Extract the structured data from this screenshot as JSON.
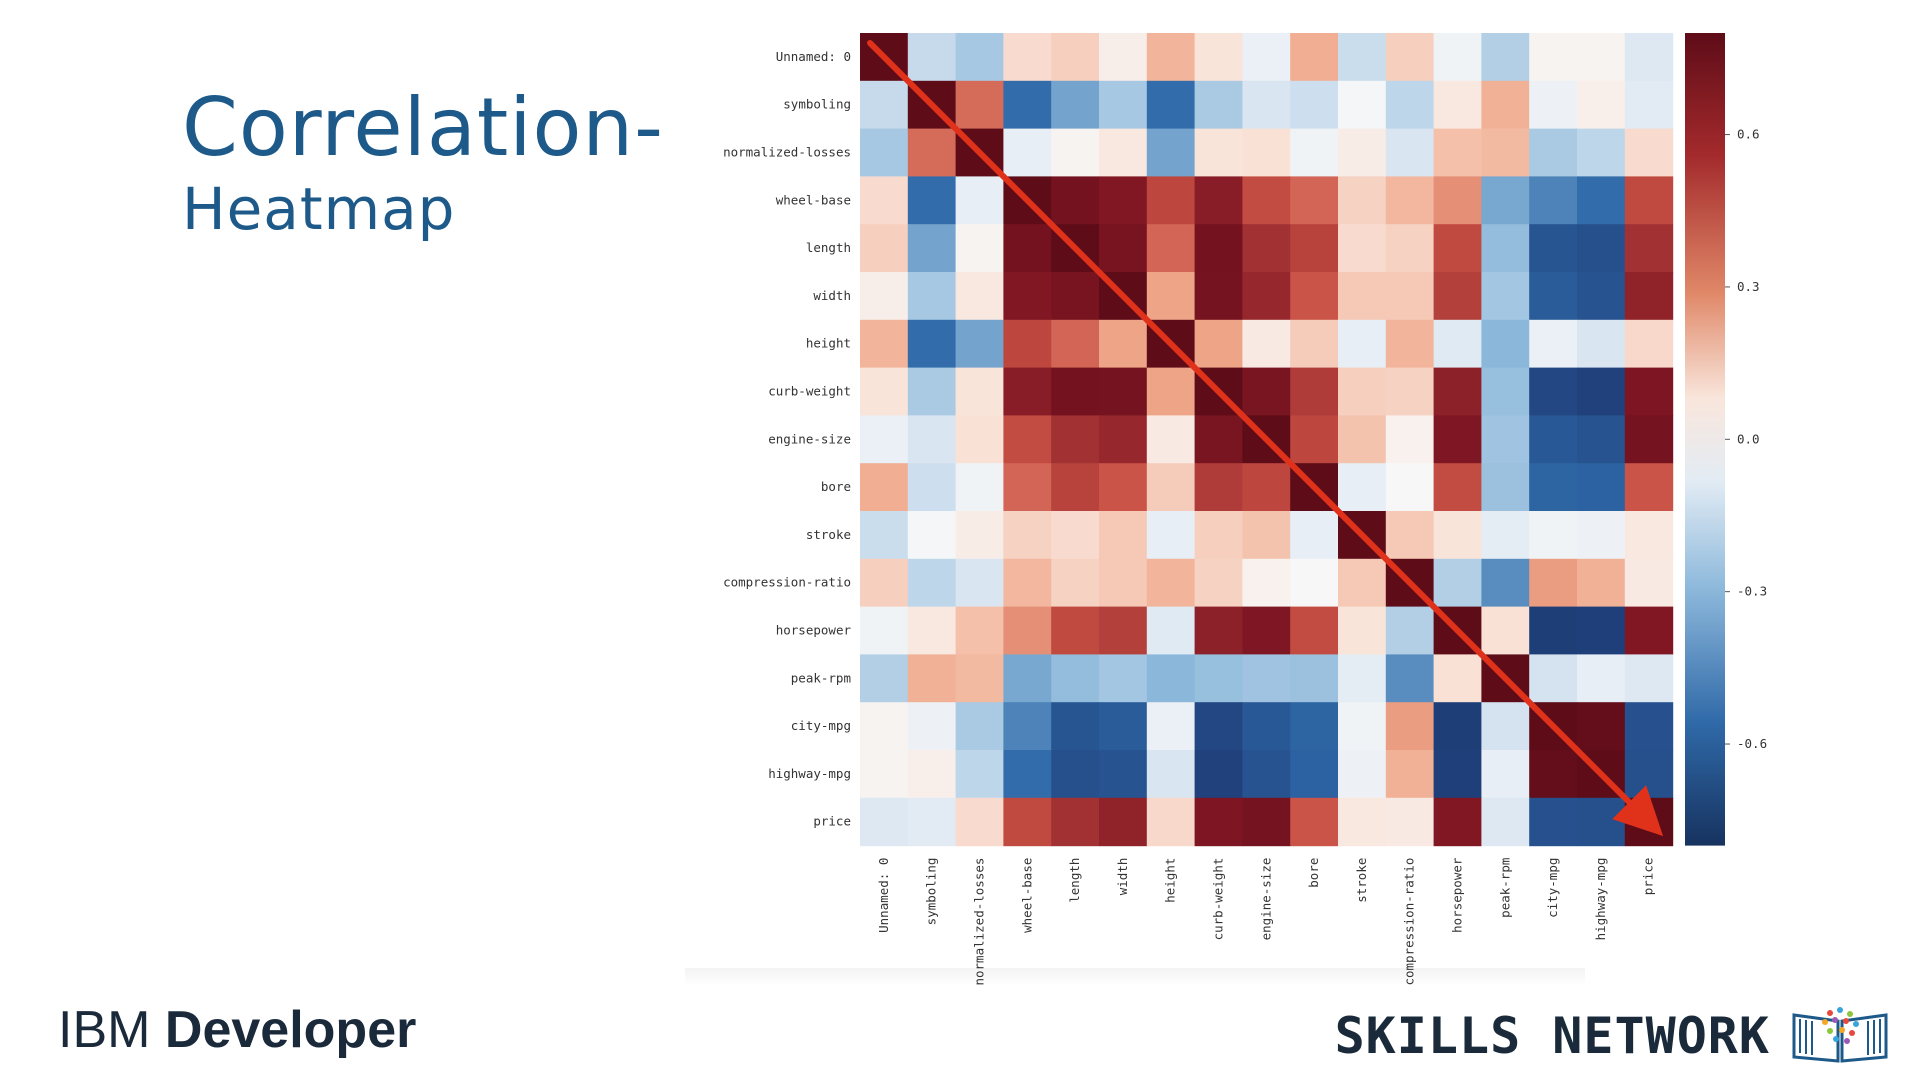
{
  "slide": {
    "title_line1": "Correlation-",
    "title_line2": "Heatmap"
  },
  "footer": {
    "left_light": "IBM ",
    "left_bold": "Developer",
    "right_text": "SKILLS NETWORK",
    "right_logo_icon": "skills-network-book-icon"
  },
  "chart_data": {
    "type": "heatmap",
    "title": "",
    "variables": [
      "Unnamed: 0",
      "symboling",
      "normalized-losses",
      "wheel-base",
      "length",
      "width",
      "height",
      "curb-weight",
      "engine-size",
      "bore",
      "stroke",
      "compression-ratio",
      "horsepower",
      "peak-rpm",
      "city-mpg",
      "highway-mpg",
      "price"
    ],
    "values": [
      [
        1.0,
        -0.16,
        -0.24,
        0.13,
        0.17,
        0.05,
        0.26,
        0.1,
        -0.05,
        0.28,
        -0.15,
        0.17,
        -0.03,
        -0.21,
        0.02,
        0.02,
        -0.1
      ],
      [
        -0.16,
        1.0,
        0.47,
        -0.54,
        -0.37,
        -0.24,
        -0.54,
        -0.23,
        -0.11,
        -0.14,
        -0.01,
        -0.18,
        0.08,
        0.27,
        -0.04,
        0.04,
        -0.08
      ],
      [
        -0.24,
        0.47,
        1.0,
        -0.06,
        0.02,
        0.08,
        -0.37,
        0.1,
        0.11,
        -0.03,
        0.06,
        -0.11,
        0.22,
        0.24,
        -0.23,
        -0.18,
        0.13
      ],
      [
        0.13,
        -0.54,
        -0.06,
        1.0,
        0.88,
        0.81,
        0.59,
        0.78,
        0.57,
        0.49,
        0.16,
        0.25,
        0.37,
        -0.36,
        -0.47,
        -0.54,
        0.58
      ],
      [
        0.17,
        -0.37,
        0.02,
        0.88,
        1.0,
        0.86,
        0.49,
        0.88,
        0.69,
        0.61,
        0.13,
        0.16,
        0.58,
        -0.29,
        -0.67,
        -0.7,
        0.69
      ],
      [
        0.05,
        -0.24,
        0.08,
        0.81,
        0.86,
        1.0,
        0.31,
        0.87,
        0.73,
        0.54,
        0.19,
        0.19,
        0.62,
        -0.25,
        -0.63,
        -0.68,
        0.75
      ],
      [
        0.26,
        -0.54,
        -0.37,
        0.59,
        0.49,
        0.31,
        1.0,
        0.31,
        0.07,
        0.18,
        -0.06,
        0.26,
        -0.09,
        -0.31,
        -0.05,
        -0.11,
        0.14
      ],
      [
        0.1,
        -0.23,
        0.1,
        0.78,
        0.88,
        0.87,
        0.31,
        1.0,
        0.85,
        0.64,
        0.17,
        0.16,
        0.76,
        -0.28,
        -0.75,
        -0.79,
        0.83
      ],
      [
        -0.05,
        -0.11,
        0.11,
        0.57,
        0.69,
        0.73,
        0.07,
        0.85,
        1.0,
        0.59,
        0.21,
        0.03,
        0.82,
        -0.26,
        -0.65,
        -0.68,
        0.87
      ],
      [
        0.28,
        -0.14,
        -0.03,
        0.49,
        0.61,
        0.54,
        0.18,
        0.64,
        0.59,
        1.0,
        -0.06,
        0.0,
        0.57,
        -0.27,
        -0.58,
        -0.59,
        0.54
      ],
      [
        -0.15,
        -0.01,
        0.06,
        0.16,
        0.13,
        0.19,
        -0.06,
        0.17,
        0.21,
        -0.06,
        1.0,
        0.19,
        0.1,
        -0.07,
        -0.03,
        -0.04,
        0.08
      ],
      [
        0.17,
        -0.18,
        -0.11,
        0.25,
        0.16,
        0.19,
        0.26,
        0.16,
        0.03,
        0.0,
        0.19,
        1.0,
        -0.21,
        -0.44,
        0.33,
        0.27,
        0.07
      ],
      [
        -0.03,
        0.08,
        0.22,
        0.37,
        0.58,
        0.62,
        -0.09,
        0.76,
        0.82,
        0.57,
        0.1,
        -0.21,
        1.0,
        0.11,
        -0.82,
        -0.8,
        0.81
      ],
      [
        -0.21,
        0.27,
        0.24,
        -0.36,
        -0.29,
        -0.25,
        -0.31,
        -0.28,
        -0.26,
        -0.27,
        -0.07,
        -0.44,
        0.11,
        1.0,
        -0.12,
        -0.06,
        -0.1
      ],
      [
        0.02,
        -0.04,
        -0.23,
        -0.47,
        -0.67,
        -0.63,
        -0.05,
        -0.75,
        -0.65,
        -0.58,
        -0.03,
        0.33,
        -0.82,
        -0.12,
        1.0,
        0.97,
        -0.69
      ],
      [
        0.02,
        0.04,
        -0.18,
        -0.54,
        -0.7,
        -0.68,
        -0.11,
        -0.79,
        -0.68,
        -0.59,
        -0.04,
        0.27,
        -0.8,
        -0.06,
        0.97,
        1.0,
        -0.7
      ],
      [
        -0.1,
        -0.08,
        0.13,
        0.58,
        0.69,
        0.75,
        0.14,
        0.83,
        0.87,
        0.54,
        0.08,
        0.07,
        0.81,
        -0.1,
        -0.69,
        -0.7,
        1.0
      ]
    ],
    "colorbar": {
      "range": [
        -0.8,
        0.8
      ],
      "ticks": [
        "0.6",
        "0.3",
        "0.0",
        "-0.3",
        "-0.6"
      ],
      "tick_values": [
        0.6,
        0.3,
        0.0,
        -0.3,
        -0.6
      ],
      "low_color": "#1f3f7a",
      "mid_color": "#f7f7f7",
      "high_color": "#6b0f1a"
    },
    "annotation": {
      "type": "diagonal-arrow",
      "color": "#e0321a"
    }
  }
}
